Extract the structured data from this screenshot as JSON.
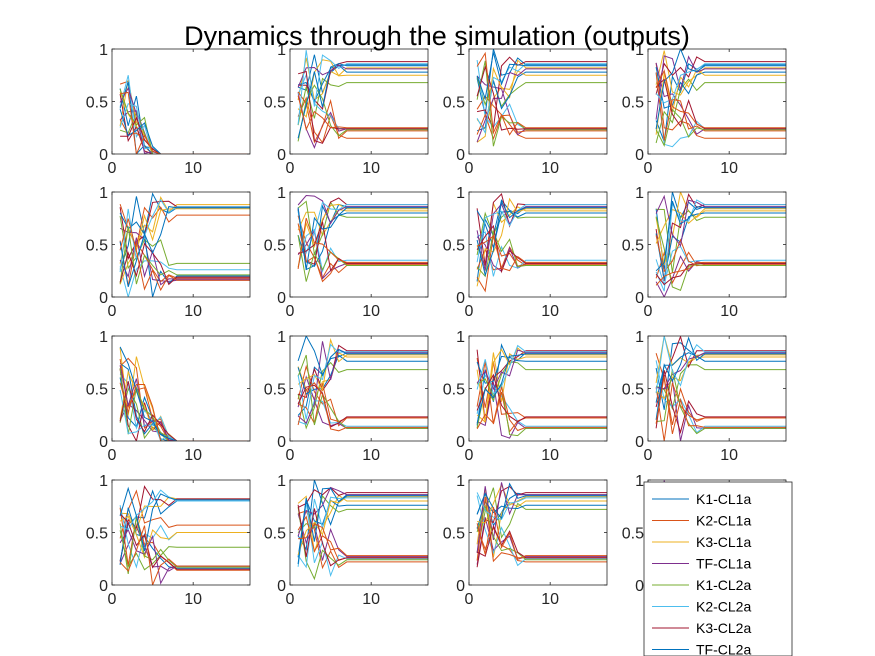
{
  "chart_data": {
    "type": "line",
    "title": "Dynamics through the simulation (outputs)",
    "layout": "4x4 grid of small multiples",
    "xlim": [
      0,
      17
    ],
    "ylim": [
      0,
      1
    ],
    "x_ticks": [
      "0",
      "10"
    ],
    "y_ticks": [
      "0",
      "0.5",
      "1"
    ],
    "x": [
      1,
      2,
      3,
      4,
      5,
      6,
      7,
      8,
      9,
      10,
      11,
      12,
      13,
      14,
      15,
      16,
      17
    ],
    "series_colors": [
      "#0072BD",
      "#D95319",
      "#EDB120",
      "#7E2F8E",
      "#77AC30",
      "#4DBEEE",
      "#A2142F",
      "#0072BD",
      "#D95319",
      "#EDB120",
      "#7E2F8E",
      "#77AC30",
      "#4DBEEE",
      "#A2142F",
      "#0072BD",
      "#D95319"
    ],
    "legend": {
      "placement": "over bottom-right panel",
      "entries": [
        {
          "label": "K1-CL1a",
          "color": "#0072BD"
        },
        {
          "label": "K2-CL1a",
          "color": "#D95319"
        },
        {
          "label": "K3-CL1a",
          "color": "#EDB120"
        },
        {
          "label": "TF-CL1a",
          "color": "#7E2F8E"
        },
        {
          "label": "K1-CL2a",
          "color": "#77AC30"
        },
        {
          "label": "K2-CL2a",
          "color": "#4DBEEE"
        },
        {
          "label": "K3-CL2a",
          "color": "#A2142F"
        },
        {
          "label": "TF-CL2a",
          "color": "#0072BD"
        }
      ]
    },
    "panels": [
      {
        "row": 1,
        "col": 1,
        "steady": [
          0,
          0,
          0,
          0,
          0,
          0,
          0,
          0,
          0,
          0,
          0,
          0,
          0,
          0,
          0,
          0
        ],
        "settle": 5
      },
      {
        "row": 1,
        "col": 2,
        "steady": [
          0.85,
          0.15,
          0.82,
          0.24,
          0.68,
          0.24,
          0.88,
          0.78,
          0.22,
          0.75,
          0.81,
          0.23,
          0.86,
          0.24,
          0.84,
          0.25
        ],
        "settle": 6
      },
      {
        "row": 1,
        "col": 3,
        "steady": [
          0.85,
          0.15,
          0.82,
          0.24,
          0.68,
          0.24,
          0.88,
          0.78,
          0.22,
          0.75,
          0.81,
          0.23,
          0.86,
          0.24,
          0.84,
          0.25
        ],
        "settle": 6
      },
      {
        "row": 1,
        "col": 4,
        "steady": [
          0.85,
          0.15,
          0.82,
          0.24,
          0.68,
          0.24,
          0.88,
          0.78,
          0.22,
          0.75,
          0.81,
          0.23,
          0.86,
          0.24,
          0.84,
          0.25
        ],
        "settle": 6
      },
      {
        "row": 2,
        "col": 1,
        "steady": [
          0.85,
          0.78,
          0.88,
          0.16,
          0.32,
          0.26,
          0.86,
          0.2,
          0.18,
          0.84,
          0.17,
          0.21,
          0.86,
          0.19,
          0.85,
          0.16
        ],
        "settle": 7
      },
      {
        "row": 2,
        "col": 2,
        "steady": [
          0.86,
          0.3,
          0.82,
          0.32,
          0.76,
          0.35,
          0.88,
          0.8,
          0.31,
          0.84,
          0.86,
          0.3,
          0.88,
          0.32,
          0.85,
          0.33
        ],
        "settle": 6
      },
      {
        "row": 2,
        "col": 3,
        "steady": [
          0.86,
          0.3,
          0.82,
          0.32,
          0.76,
          0.35,
          0.88,
          0.8,
          0.31,
          0.84,
          0.86,
          0.3,
          0.88,
          0.32,
          0.85,
          0.33
        ],
        "settle": 6
      },
      {
        "row": 2,
        "col": 4,
        "steady": [
          0.86,
          0.3,
          0.82,
          0.32,
          0.76,
          0.35,
          0.88,
          0.8,
          0.31,
          0.84,
          0.86,
          0.3,
          0.88,
          0.32,
          0.85,
          0.33
        ],
        "settle": 6
      },
      {
        "row": 3,
        "col": 1,
        "steady": [
          0,
          0,
          0,
          0,
          0,
          0,
          0,
          0,
          0,
          0,
          0,
          0,
          0,
          0,
          0,
          0
        ],
        "settle": 7
      },
      {
        "row": 3,
        "col": 2,
        "steady": [
          0.84,
          0.22,
          0.8,
          0.12,
          0.68,
          0.14,
          0.86,
          0.76,
          0.22,
          0.82,
          0.84,
          0.12,
          0.85,
          0.23,
          0.83,
          0.13
        ],
        "settle": 6
      },
      {
        "row": 3,
        "col": 3,
        "steady": [
          0.84,
          0.22,
          0.8,
          0.12,
          0.68,
          0.14,
          0.86,
          0.76,
          0.22,
          0.82,
          0.84,
          0.12,
          0.85,
          0.23,
          0.83,
          0.13
        ],
        "settle": 6
      },
      {
        "row": 3,
        "col": 4,
        "steady": [
          0.84,
          0.22,
          0.8,
          0.12,
          0.68,
          0.14,
          0.86,
          0.76,
          0.22,
          0.82,
          0.84,
          0.12,
          0.85,
          0.23,
          0.83,
          0.13
        ],
        "settle": 6
      },
      {
        "row": 4,
        "col": 1,
        "steady": [
          0.8,
          0.57,
          0.82,
          0.18,
          0.36,
          0.5,
          0.82,
          0.16,
          0.14,
          0.5,
          0.18,
          0.17,
          0.8,
          0.15,
          0.81,
          0.18
        ],
        "settle": 7
      },
      {
        "row": 4,
        "col": 2,
        "steady": [
          0.86,
          0.22,
          0.8,
          0.27,
          0.72,
          0.25,
          0.88,
          0.76,
          0.26,
          0.84,
          0.86,
          0.24,
          0.83,
          0.26,
          0.85,
          0.28
        ],
        "settle": 6
      },
      {
        "row": 4,
        "col": 3,
        "steady": [
          0.86,
          0.22,
          0.8,
          0.27,
          0.72,
          0.25,
          0.88,
          0.76,
          0.26,
          0.84,
          0.86,
          0.24,
          0.83,
          0.26,
          0.85,
          0.28
        ],
        "settle": 6
      },
      {
        "row": 4,
        "col": 4,
        "steady": [
          0.86,
          0.22,
          0.8,
          0.27,
          0.72,
          0.25,
          0.88,
          0.76,
          0.26,
          0.84,
          0.86,
          0.24,
          0.83,
          0.26,
          0.85,
          0.28
        ],
        "settle": 6
      }
    ]
  }
}
